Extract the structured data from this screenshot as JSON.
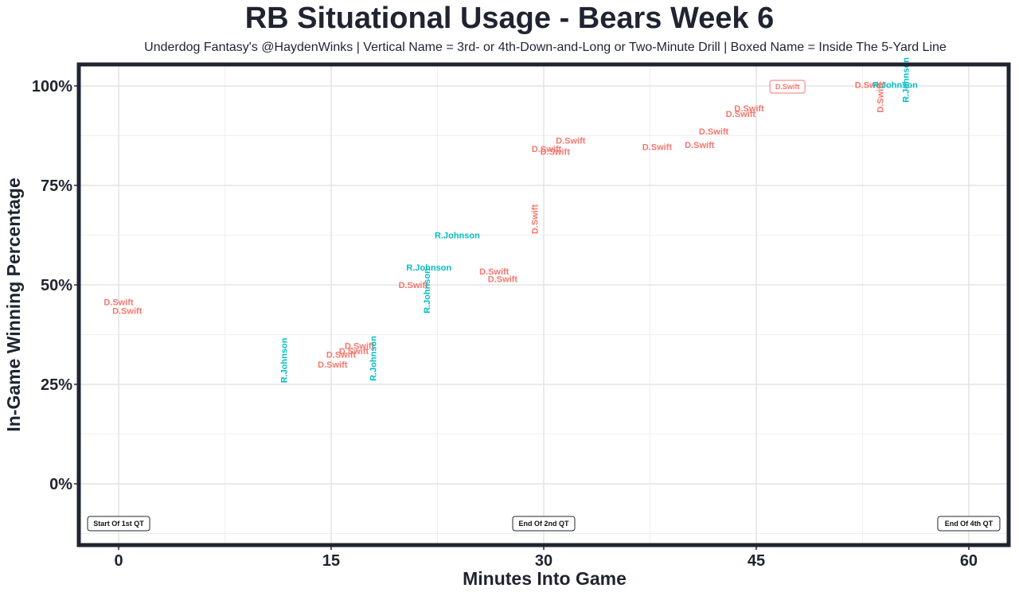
{
  "chart_data": {
    "type": "scatter",
    "title": "RB Situational Usage - Bears Week 6",
    "subtitle": "Underdog Fantasy's @HaydenWinks | Vertical Name = 3rd- or 4th-Down-and-Long or Two-Minute Drill | Boxed Name = Inside The 5-Yard Line",
    "xlabel": "Minutes Into Game",
    "ylabel": "In-Game Winning Percentage",
    "xlim": [
      -2.7,
      62.7
    ],
    "ylim": [
      -15,
      105
    ],
    "xticks": [
      0,
      15,
      30,
      45,
      60
    ],
    "xtick_labels": [
      "0",
      "15",
      "30",
      "45",
      "60"
    ],
    "yticks": [
      0,
      25,
      50,
      75,
      100
    ],
    "ytick_labels": [
      "0%",
      "25%",
      "50%",
      "75%",
      "100%"
    ],
    "colors": {
      "D.Swift": "#f8766d",
      "R.Johnson": "#00bfc4"
    },
    "points": [
      {
        "player": "D.Swift",
        "x": 0.0,
        "y": 45.5,
        "style": "normal"
      },
      {
        "player": "D.Swift",
        "x": 0.6,
        "y": 43.3,
        "style": "normal"
      },
      {
        "player": "R.Johnson",
        "x": 11.7,
        "y": 31.0,
        "style": "vertical"
      },
      {
        "player": "D.Swift",
        "x": 15.1,
        "y": 29.8,
        "style": "normal"
      },
      {
        "player": "D.Swift",
        "x": 15.7,
        "y": 32.3,
        "style": "normal"
      },
      {
        "player": "D.Swift",
        "x": 16.6,
        "y": 33.2,
        "style": "normal"
      },
      {
        "player": "D.Swift",
        "x": 17.0,
        "y": 34.5,
        "style": "normal"
      },
      {
        "player": "R.Johnson",
        "x": 18.0,
        "y": 31.5,
        "style": "vertical"
      },
      {
        "player": "D.Swift",
        "x": 20.8,
        "y": 49.8,
        "style": "normal"
      },
      {
        "player": "R.Johnson",
        "x": 21.9,
        "y": 54.2,
        "style": "normal"
      },
      {
        "player": "R.Johnson",
        "x": 21.8,
        "y": 48.5,
        "style": "vertical"
      },
      {
        "player": "R.Johnson",
        "x": 23.9,
        "y": 62.3,
        "style": "normal"
      },
      {
        "player": "D.Swift",
        "x": 26.5,
        "y": 53.2,
        "style": "normal"
      },
      {
        "player": "D.Swift",
        "x": 27.1,
        "y": 51.3,
        "style": "normal"
      },
      {
        "player": "D.Swift",
        "x": 29.4,
        "y": 66.5,
        "style": "vertical"
      },
      {
        "player": "D.Swift",
        "x": 30.2,
        "y": 84.0,
        "style": "normal"
      },
      {
        "player": "D.Swift",
        "x": 30.8,
        "y": 83.3,
        "style": "normal"
      },
      {
        "player": "D.Swift",
        "x": 31.9,
        "y": 86.1,
        "style": "normal"
      },
      {
        "player": "D.Swift",
        "x": 38.0,
        "y": 84.5,
        "style": "normal"
      },
      {
        "player": "D.Swift",
        "x": 41.0,
        "y": 85.0,
        "style": "normal"
      },
      {
        "player": "D.Swift",
        "x": 42.0,
        "y": 88.4,
        "style": "normal"
      },
      {
        "player": "D.Swift",
        "x": 43.9,
        "y": 92.8,
        "style": "normal"
      },
      {
        "player": "D.Swift",
        "x": 44.5,
        "y": 94.2,
        "style": "normal"
      },
      {
        "player": "D.Swift",
        "x": 47.2,
        "y": 99.8,
        "style": "boxed"
      },
      {
        "player": "D.Swift",
        "x": 53.0,
        "y": 100.1,
        "style": "normal"
      },
      {
        "player": "D.Swift",
        "x": 53.8,
        "y": 97.0,
        "style": "vertical"
      },
      {
        "player": "R.Johnson",
        "x": 54.8,
        "y": 100.1,
        "style": "normal"
      },
      {
        "player": "R.Johnson",
        "x": 55.6,
        "y": 101.5,
        "style": "vertical"
      }
    ],
    "quarter_markers": [
      {
        "x": 0,
        "y": -10,
        "label": "Start Of 1st QT"
      },
      {
        "x": 30,
        "y": -10,
        "label": "End Of 2nd QT"
      },
      {
        "x": 60,
        "y": -10,
        "label": "End Of 4th QT"
      }
    ]
  }
}
